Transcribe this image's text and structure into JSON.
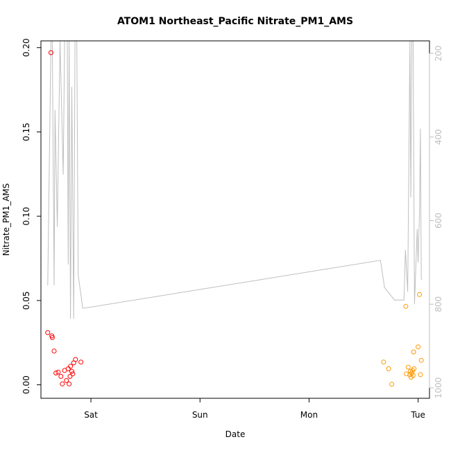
{
  "chart_data": {
    "type": "scatter",
    "title": "ATOM1 Northeast_Pacific Nitrate_PM1_AMS",
    "xlabel": "Date",
    "ylabel": "Nitrate_PM1_AMS",
    "x_ticks": [
      {
        "label": "Sat",
        "value": 24.0
      },
      {
        "label": "Sun",
        "value": 48.0
      },
      {
        "label": "Mon",
        "value": 72.0
      },
      {
        "label": "Tue",
        "value": 96.0
      }
    ],
    "xlim": [
      13.0,
      98.5
    ],
    "ylim": [
      -0.008,
      0.204
    ],
    "y_ticks": [
      0.0,
      0.05,
      0.1,
      0.15,
      0.2
    ],
    "y_tick_labels": [
      "0.00",
      "0.05",
      "0.10",
      "0.15",
      "0.20"
    ],
    "y2_ticks": [
      200,
      400,
      600,
      800,
      1000
    ],
    "y2_tick_labels": [
      "200",
      "400",
      "600",
      "800",
      "1000"
    ],
    "y2lim": [
      1025,
      170
    ],
    "colors": {
      "series1": "#ff0000",
      "series2": "#ff9900",
      "altitude": "#bebebe",
      "axis": "#000000",
      "y2_axis": "#bebebe"
    },
    "series": [
      {
        "color": "#ff0000",
        "points": [
          {
            "x": 14.5,
            "y": 0.031
          },
          {
            "x": 15.2,
            "y": 0.197
          },
          {
            "x": 15.4,
            "y": 0.029
          },
          {
            "x": 15.5,
            "y": 0.028
          },
          {
            "x": 15.9,
            "y": 0.02
          },
          {
            "x": 16.3,
            "y": 0.007
          },
          {
            "x": 16.8,
            "y": 0.0075
          },
          {
            "x": 17.4,
            "y": 0.005
          },
          {
            "x": 17.7,
            "y": 0.0005
          },
          {
            "x": 18.2,
            "y": 0.0085
          },
          {
            "x": 18.6,
            "y": 0.0025
          },
          {
            "x": 19.0,
            "y": 0.0095
          },
          {
            "x": 19.2,
            "y": 0.0005
          },
          {
            "x": 19.4,
            "y": 0.005
          },
          {
            "x": 19.5,
            "y": 0.011
          },
          {
            "x": 19.8,
            "y": 0.008
          },
          {
            "x": 20.0,
            "y": 0.0065
          },
          {
            "x": 20.2,
            "y": 0.013
          },
          {
            "x": 20.6,
            "y": 0.015
          },
          {
            "x": 21.8,
            "y": 0.0135
          }
        ]
      },
      {
        "color": "#ff9900",
        "points": [
          {
            "x": 88.4,
            "y": 0.0135
          },
          {
            "x": 89.5,
            "y": 0.0095
          },
          {
            "x": 90.2,
            "y": 0.0003
          },
          {
            "x": 93.3,
            "y": 0.0465
          },
          {
            "x": 93.4,
            "y": 0.0065
          },
          {
            "x": 93.8,
            "y": 0.0105
          },
          {
            "x": 94.2,
            "y": 0.006
          },
          {
            "x": 94.3,
            "y": 0.008
          },
          {
            "x": 94.45,
            "y": 0.0045
          },
          {
            "x": 94.6,
            "y": 0.007
          },
          {
            "x": 94.8,
            "y": 0.0085
          },
          {
            "x": 94.9,
            "y": 0.0055
          },
          {
            "x": 95.0,
            "y": 0.0195
          },
          {
            "x": 95.1,
            "y": 0.0095
          },
          {
            "x": 96.0,
            "y": 0.0225
          },
          {
            "x": 96.3,
            "y": 0.0535
          },
          {
            "x": 96.5,
            "y": 0.006
          },
          {
            "x": 96.7,
            "y": 0.0145
          }
        ]
      }
    ],
    "secondary_line": {
      "color": "#bebebe",
      "points": [
        {
          "x": 14.5,
          "y2": 755
        },
        {
          "x": 15.2,
          "y2": 170
        },
        {
          "x": 15.5,
          "y2": 170
        },
        {
          "x": 15.9,
          "y2": 755
        },
        {
          "x": 16.1,
          "y2": 335
        },
        {
          "x": 16.6,
          "y2": 615
        },
        {
          "x": 17.2,
          "y2": 170
        },
        {
          "x": 17.9,
          "y2": 490
        },
        {
          "x": 18.2,
          "y2": 170
        },
        {
          "x": 18.8,
          "y2": 170
        },
        {
          "x": 19.0,
          "y2": 705
        },
        {
          "x": 19.2,
          "y2": 170
        },
        {
          "x": 19.5,
          "y2": 835
        },
        {
          "x": 19.8,
          "y2": 280
        },
        {
          "x": 20.2,
          "y2": 835
        },
        {
          "x": 20.5,
          "y2": 170
        },
        {
          "x": 20.9,
          "y2": 170
        },
        {
          "x": 21.2,
          "y2": 730
        },
        {
          "x": 22.2,
          "y2": 810
        },
        {
          "x": 87.7,
          "y2": 695
        },
        {
          "x": 88.6,
          "y2": 760
        },
        {
          "x": 90.8,
          "y2": 790
        },
        {
          "x": 92.9,
          "y2": 790
        },
        {
          "x": 93.2,
          "y2": 670
        },
        {
          "x": 93.7,
          "y2": 770
        },
        {
          "x": 94.2,
          "y2": 170
        },
        {
          "x": 94.4,
          "y2": 545
        },
        {
          "x": 94.6,
          "y2": 170
        },
        {
          "x": 94.9,
          "y2": 170
        },
        {
          "x": 95.2,
          "y2": 800
        },
        {
          "x": 95.8,
          "y2": 620
        },
        {
          "x": 96.0,
          "y2": 700
        },
        {
          "x": 96.3,
          "y2": 580
        },
        {
          "x": 96.5,
          "y2": 380
        },
        {
          "x": 96.7,
          "y2": 740
        },
        {
          "x": 96.9,
          "y2": 740
        }
      ]
    }
  }
}
